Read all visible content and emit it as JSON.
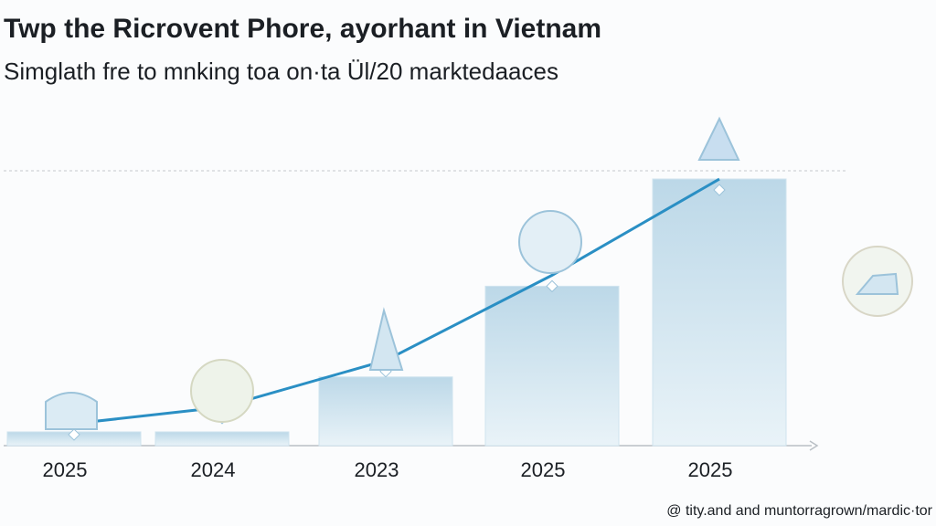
{
  "chart_data": {
    "type": "bar",
    "title": "Twp the Ricrovent Phore, ayorhant in Vietnam",
    "subtitle": "Simglath fre to mnking toa on·ta Ül/20 marktedaaces",
    "footer": "@ tity.and and muntorragrown/mardic·tor",
    "categories": [
      "2025",
      "2024",
      "2023",
      "2025",
      "2025"
    ],
    "series": [
      {
        "type": "bar",
        "color": "#cfe3ee",
        "values": [
          5,
          5,
          25,
          58,
          97
        ]
      },
      {
        "type": "line",
        "color": "#2a8fc4",
        "values": [
          8,
          14,
          31,
          62,
          97
        ]
      }
    ],
    "ylim": [
      0,
      100
    ],
    "grid": false
  }
}
